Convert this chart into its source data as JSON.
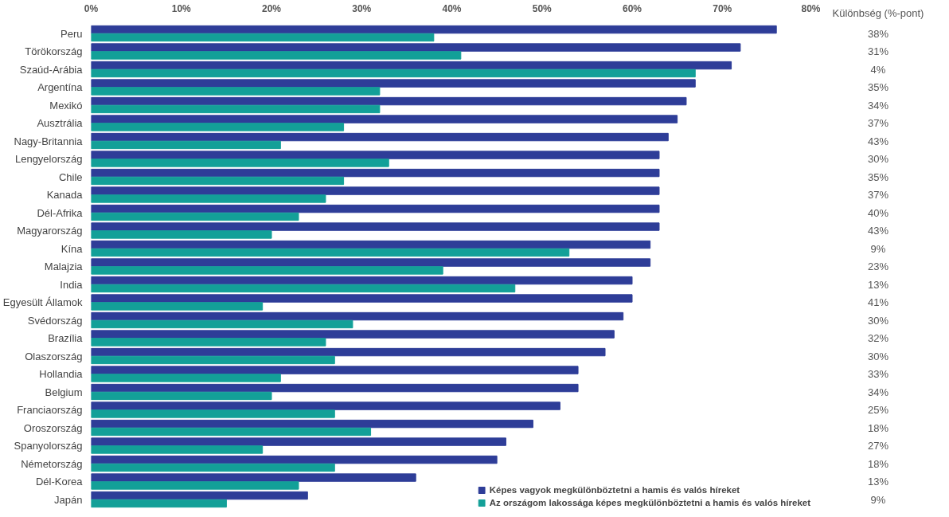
{
  "chart_data": {
    "type": "bar",
    "orientation": "horizontal",
    "categories": [
      "Peru",
      "Törökország",
      "Szaúd-Arábia",
      "Argentína",
      "Mexikó",
      "Ausztrália",
      "Nagy-Britannia",
      "Lengyelország",
      "Chile",
      "Kanada",
      "Dél-Afrika",
      "Magyarország",
      "Kína",
      "Malajzia",
      "India",
      "Egyesült Államok",
      "Svédország",
      "Brazília",
      "Olaszország",
      "Hollandia",
      "Belgium",
      "Franciaország",
      "Oroszország",
      "Spanyolország",
      "Németország",
      "Dél-Korea",
      "Japán"
    ],
    "series": [
      {
        "name": "Képes vagyok megkülönböztetni a hamis és valós híreket",
        "color": "#2e3d98",
        "values": [
          76,
          72,
          71,
          67,
          66,
          65,
          64,
          63,
          63,
          63,
          63,
          63,
          62,
          62,
          60,
          60,
          59,
          58,
          57,
          54,
          54,
          52,
          49,
          46,
          45,
          36,
          24
        ]
      },
      {
        "name": "Az országom lakossága képes megkülönböztetni a hamis és valós híreket",
        "color": "#13a098",
        "values": [
          38,
          41,
          67,
          32,
          32,
          28,
          21,
          33,
          28,
          26,
          23,
          20,
          53,
          39,
          47,
          19,
          29,
          26,
          27,
          21,
          20,
          27,
          31,
          19,
          27,
          23,
          15
        ]
      }
    ],
    "xlim": [
      0,
      80
    ],
    "xticks": [
      {
        "value": 0,
        "label": "0%"
      },
      {
        "value": 10,
        "label": "10%"
      },
      {
        "value": 20,
        "label": "20%"
      },
      {
        "value": 30,
        "label": "30%"
      },
      {
        "value": 40,
        "label": "40%"
      },
      {
        "value": 50,
        "label": "50%"
      },
      {
        "value": 60,
        "label": "60%"
      },
      {
        "value": 70,
        "label": "70%"
      },
      {
        "value": 80,
        "label": "80%"
      }
    ],
    "annotations": [
      "Különbség (%-pont)",
      "38%",
      "31%",
      "4%",
      "35%",
      "34%",
      "37%",
      "43%",
      "30%",
      "35%",
      "37%",
      "40%",
      "43%",
      "9%",
      "23%",
      "13%",
      "41%",
      "30%",
      "32%",
      "30%",
      "33%",
      "34%",
      "25%",
      "18%",
      "27%",
      "18%",
      "13%",
      "9%"
    ],
    "grid": false,
    "legend": "bottom right"
  }
}
